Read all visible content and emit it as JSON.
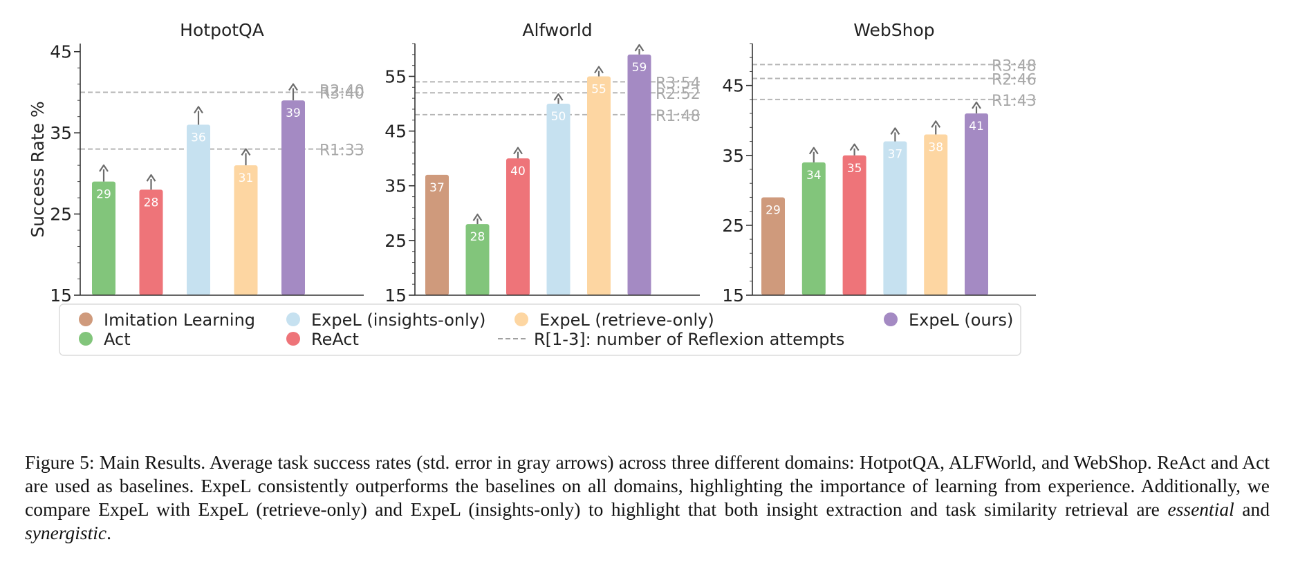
{
  "chart_data": [
    {
      "type": "bar",
      "title": "HotpotQA",
      "ylabel": "Success Rate %",
      "ylim": [
        15,
        46
      ],
      "yticks": [
        15,
        25,
        35,
        45
      ],
      "bars": [
        {
          "series": "Act",
          "value": 29,
          "err": 1.5
        },
        {
          "series": "ReAct",
          "value": 28,
          "err": 1.3
        },
        {
          "series": "ExpeL (insights-only)",
          "value": 36,
          "err": 1.7
        },
        {
          "series": "ExpeL (retrieve-only)",
          "value": 31,
          "err": 1.5
        },
        {
          "series": "ExpeL (ours)",
          "value": 39,
          "err": 1.5
        }
      ],
      "reference_lines": [
        {
          "label": "R3:40",
          "value": 40
        },
        {
          "label": "R2:40",
          "value": 40
        },
        {
          "label": "R1:33",
          "value": 33
        }
      ]
    },
    {
      "type": "bar",
      "title": "Alfworld",
      "ylabel": "",
      "ylim": [
        15,
        61
      ],
      "yticks": [
        15,
        25,
        35,
        45,
        55
      ],
      "bars": [
        {
          "series": "Imitation Learning",
          "value": 37,
          "err": 0
        },
        {
          "series": "Act",
          "value": 28,
          "err": 1.0
        },
        {
          "series": "ReAct",
          "value": 40,
          "err": 1.2
        },
        {
          "series": "ExpeL (insights-only)",
          "value": 50,
          "err": 1.0
        },
        {
          "series": "ExpeL (retrieve-only)",
          "value": 55,
          "err": 1.0
        },
        {
          "series": "ExpeL (ours)",
          "value": 59,
          "err": 1.0
        }
      ],
      "reference_lines": [
        {
          "label": "R3:54",
          "value": 54
        },
        {
          "label": "R2:52",
          "value": 52
        },
        {
          "label": "R1:48",
          "value": 48
        }
      ]
    },
    {
      "type": "bar",
      "title": "WebShop",
      "ylabel": "",
      "ylim": [
        15,
        51
      ],
      "yticks": [
        15,
        25,
        35,
        45
      ],
      "bars": [
        {
          "series": "Imitation Learning",
          "value": 29,
          "err": 0
        },
        {
          "series": "Act",
          "value": 34,
          "err": 1.5
        },
        {
          "series": "ReAct",
          "value": 35,
          "err": 1.0
        },
        {
          "series": "ExpeL (insights-only)",
          "value": 37,
          "err": 1.3
        },
        {
          "series": "ExpeL (retrieve-only)",
          "value": 38,
          "err": 1.3
        },
        {
          "series": "ExpeL (ours)",
          "value": 41,
          "err": 1.0
        }
      ],
      "reference_lines": [
        {
          "label": "R3:48",
          "value": 48
        },
        {
          "label": "R2:46",
          "value": 46
        },
        {
          "label": "R1:43",
          "value": 43
        }
      ]
    }
  ],
  "series_colors": {
    "Imitation Learning": "#cf9a7c",
    "Act": "#82c57b",
    "ReAct": "#ee7479",
    "ExpeL (insights-only)": "#c6e1f0",
    "ExpeL (retrieve-only)": "#fdd6a2",
    "ExpeL (ours)": "#a48ac3"
  },
  "legend": {
    "placement": "bottom",
    "items": [
      {
        "label": "Imitation Learning",
        "series": "Imitation Learning",
        "marker": "dot"
      },
      {
        "label": "ExpeL (insights-only)",
        "series": "ExpeL (insights-only)",
        "marker": "dot"
      },
      {
        "label": "ExpeL (retrieve-only)",
        "series": "ExpeL (retrieve-only)",
        "marker": "dot"
      },
      {
        "label": "ExpeL (ours)",
        "series": "ExpeL (ours)",
        "marker": "dot"
      },
      {
        "label": "Act",
        "series": "Act",
        "marker": "dot"
      },
      {
        "label": "ReAct",
        "series": "ReAct",
        "marker": "dot"
      },
      {
        "label": "R[1-3]: number of Reflexion attempts",
        "series": "",
        "marker": "dashed-line"
      }
    ]
  },
  "caption": {
    "part1": "Figure 5: Main Results. Average task success rates (std. error in gray arrows) across three different domains: HotpotQA, ALFWorld, and WebShop. ReAct and Act are used as baselines. ExpeL consistently outperforms the baselines on all domains, highlighting the importance of learning from experience. Additionally, we compare ExpeL with ExpeL (retrieve-only) and ExpeL (insights-only) to highlight that both insight extraction and task similarity retrieval are ",
    "em1": "essential",
    "part2": " and ",
    "em2": "synergistic",
    "part3": "."
  }
}
